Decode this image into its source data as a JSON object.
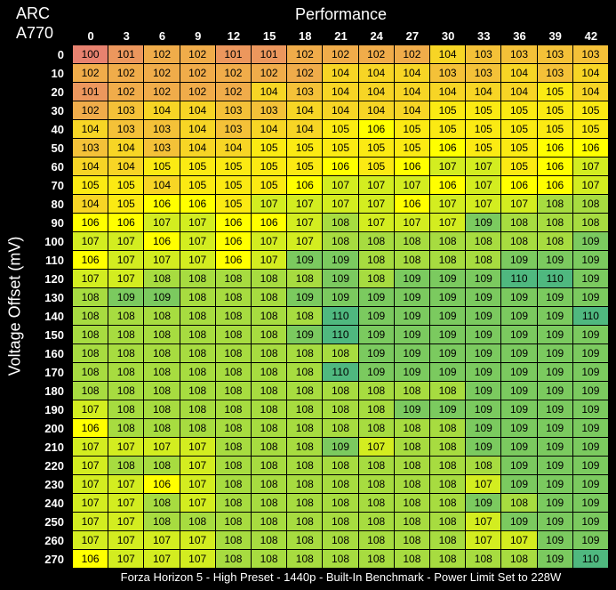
{
  "chart_data": {
    "type": "heatmap",
    "title": "Performance",
    "corner_title": [
      "ARC",
      "A770"
    ],
    "ylabel": "Voltage Offset (mV)",
    "footer": "Forza Horizon 5 - High Preset - 1440p - Built-In Benchmark - Power Limit Set to 228W",
    "x": [
      0,
      3,
      6,
      9,
      12,
      15,
      18,
      21,
      24,
      27,
      30,
      33,
      36,
      39,
      42
    ],
    "y": [
      0,
      10,
      20,
      30,
      40,
      50,
      60,
      70,
      80,
      90,
      100,
      110,
      120,
      130,
      140,
      150,
      160,
      170,
      180,
      190,
      200,
      210,
      220,
      230,
      240,
      250,
      260,
      270
    ],
    "color_scale": {
      "low": "#e8826f",
      "mid": "#ffff00",
      "high": "#4fb87f"
    },
    "values": [
      [
        100,
        101,
        102,
        102,
        101,
        101,
        102,
        102,
        102,
        102,
        104,
        103,
        103,
        103,
        103
      ],
      [
        102,
        102,
        102,
        102,
        102,
        102,
        102,
        104,
        104,
        104,
        103,
        103,
        104,
        103,
        104
      ],
      [
        101,
        102,
        102,
        102,
        102,
        104,
        103,
        104,
        104,
        104,
        104,
        104,
        104,
        105,
        104
      ],
      [
        102,
        103,
        104,
        104,
        103,
        103,
        104,
        104,
        104,
        104,
        105,
        105,
        105,
        105,
        105
      ],
      [
        104,
        103,
        103,
        104,
        103,
        104,
        104,
        105,
        106,
        105,
        105,
        105,
        105,
        105,
        105
      ],
      [
        103,
        104,
        103,
        104,
        104,
        105,
        105,
        105,
        105,
        105,
        106,
        105,
        105,
        106,
        106
      ],
      [
        104,
        104,
        105,
        105,
        105,
        105,
        105,
        106,
        105,
        106,
        107,
        107,
        105,
        106,
        107
      ],
      [
        105,
        105,
        104,
        105,
        105,
        105,
        106,
        107,
        107,
        107,
        106,
        107,
        106,
        106,
        107
      ],
      [
        104,
        105,
        106,
        106,
        105,
        107,
        107,
        107,
        107,
        106,
        107,
        107,
        107,
        108,
        108
      ],
      [
        106,
        106,
        107,
        107,
        106,
        106,
        107,
        108,
        107,
        107,
        107,
        109,
        108,
        108,
        108
      ],
      [
        107,
        107,
        106,
        107,
        106,
        107,
        107,
        108,
        108,
        108,
        108,
        108,
        108,
        108,
        109
      ],
      [
        106,
        107,
        107,
        107,
        106,
        107,
        109,
        109,
        108,
        108,
        108,
        108,
        109,
        109,
        109
      ],
      [
        107,
        107,
        108,
        108,
        108,
        108,
        108,
        109,
        108,
        109,
        109,
        109,
        110,
        110,
        109
      ],
      [
        108,
        109,
        109,
        108,
        108,
        108,
        109,
        109,
        109,
        109,
        109,
        109,
        109,
        109,
        109
      ],
      [
        108,
        108,
        108,
        108,
        108,
        108,
        108,
        110,
        109,
        109,
        109,
        109,
        109,
        109,
        110
      ],
      [
        108,
        108,
        108,
        108,
        108,
        108,
        109,
        110,
        109,
        109,
        109,
        109,
        109,
        109,
        109
      ],
      [
        108,
        108,
        108,
        108,
        108,
        108,
        108,
        108,
        109,
        109,
        109,
        109,
        109,
        109,
        109
      ],
      [
        108,
        108,
        108,
        108,
        108,
        108,
        108,
        110,
        109,
        109,
        109,
        109,
        109,
        109,
        109
      ],
      [
        108,
        108,
        108,
        108,
        108,
        108,
        108,
        108,
        108,
        108,
        108,
        109,
        109,
        109,
        109
      ],
      [
        107,
        108,
        108,
        108,
        108,
        108,
        108,
        108,
        108,
        109,
        109,
        109,
        109,
        109,
        109
      ],
      [
        106,
        108,
        108,
        108,
        108,
        108,
        108,
        108,
        108,
        108,
        108,
        109,
        109,
        109,
        109
      ],
      [
        107,
        107,
        107,
        107,
        108,
        108,
        108,
        109,
        107,
        108,
        108,
        109,
        109,
        109,
        109
      ],
      [
        107,
        108,
        108,
        107,
        108,
        108,
        108,
        108,
        108,
        108,
        108,
        108,
        109,
        109,
        109
      ],
      [
        107,
        107,
        106,
        107,
        108,
        108,
        108,
        108,
        108,
        108,
        108,
        107,
        109,
        109,
        109
      ],
      [
        107,
        107,
        108,
        107,
        108,
        108,
        108,
        108,
        108,
        108,
        108,
        109,
        108,
        109,
        109
      ],
      [
        107,
        107,
        108,
        108,
        108,
        108,
        108,
        108,
        108,
        108,
        108,
        107,
        109,
        109,
        109
      ],
      [
        107,
        107,
        107,
        107,
        108,
        108,
        108,
        108,
        108,
        108,
        108,
        107,
        107,
        109,
        109
      ],
      [
        106,
        107,
        107,
        107,
        108,
        108,
        108,
        108,
        108,
        108,
        108,
        108,
        108,
        109,
        110
      ]
    ]
  }
}
